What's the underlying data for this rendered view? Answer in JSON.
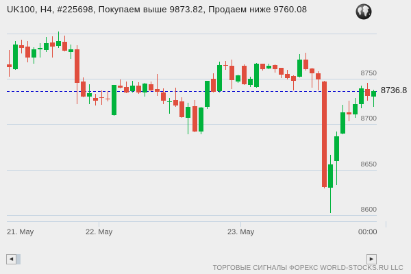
{
  "header": {
    "title": "UK100, H4, #225698, Покупаем выше 9873.82, Продаем ниже 9760.08",
    "globe_icon": "globe-icon"
  },
  "chart_data": {
    "type": "candlestick",
    "title": "UK100, H4, #225698, Покупаем выше 9873.82, Продаем ниже 9760.08",
    "symbol": "UK100",
    "timeframe": "H4",
    "signal_id": "#225698",
    "buy_above": 9873.82,
    "sell_below": 9760.08,
    "xlabel": "",
    "ylabel": "",
    "ylim": [
      8593.2,
      8800
    ],
    "grid": true,
    "legend": null,
    "gridlines": [
      8600,
      8650,
      8700,
      8750,
      8800
    ],
    "y_tick_labels": [
      {
        "value": 8600,
        "label": "8600"
      },
      {
        "value": 8650,
        "label": "8650"
      },
      {
        "value": 8700,
        "label": "8700"
      },
      {
        "value": 8750,
        "label": "8750"
      }
    ],
    "x_tick_labels": [
      "21. May",
      "22. May",
      "23. May",
      "00:00"
    ],
    "current_price": 8736.8,
    "current_price_label": "8736.8",
    "colors": {
      "up": "#00b33c",
      "down": "#e04e3e",
      "current_line": "#0000d0",
      "grid": "#c6d4e2"
    },
    "ohlc_fields": [
      "open",
      "high",
      "low",
      "close"
    ],
    "ohlc": [
      [
        8765.8,
        8781.7,
        8753.0,
        8762.8
      ],
      [
        8760.6,
        8791.5,
        8760.6,
        8787.7
      ],
      [
        8786.9,
        8793.0,
        8778.6,
        8783.9
      ],
      [
        8785.4,
        8791.5,
        8768.8,
        8773.4
      ],
      [
        8773.4,
        8784.7,
        8767.3,
        8782.4
      ],
      [
        8782.4,
        8789.2,
        8774.1,
        8783.9
      ],
      [
        8781.7,
        8796.0,
        8780.2,
        8789.2
      ],
      [
        8790.0,
        8796.7,
        8774.1,
        8785.4
      ],
      [
        8786.2,
        8802.0,
        8784.7,
        8791.5
      ],
      [
        8790.7,
        8797.5,
        8780.9,
        8780.9
      ],
      [
        8779.4,
        8787.7,
        8772.6,
        8782.4
      ],
      [
        8782.4,
        8786.9,
        8722.9,
        8745.5
      ],
      [
        8747.0,
        8751.5,
        8730.4,
        8730.4
      ],
      [
        8730.4,
        8744.0,
        8722.9,
        8734.2
      ],
      [
        8728.9,
        8733.4,
        8721.4,
        8725.9
      ],
      [
        8729.6,
        8737.2,
        8722.1,
        8728.9
      ],
      [
        8728.1,
        8736.4,
        8725.9,
        8727.4
      ],
      [
        8710.0,
        8743.2,
        8710.0,
        8743.2
      ],
      [
        8742.5,
        8749.2,
        8740.2,
        8740.2
      ],
      [
        8741.0,
        8747.0,
        8734.9,
        8734.9
      ],
      [
        8736.4,
        8747.7,
        8735.7,
        8742.5
      ],
      [
        8742.5,
        8746.2,
        8734.2,
        8734.9
      ],
      [
        8734.9,
        8745.5,
        8731.2,
        8744.7
      ],
      [
        8744.0,
        8747.0,
        8737.2,
        8737.2
      ],
      [
        8738.7,
        8755.3,
        8731.9,
        8735.7
      ],
      [
        8734.9,
        8739.4,
        8722.9,
        8725.9
      ],
      [
        8724.4,
        8728.9,
        8712.3,
        8725.1
      ],
      [
        8726.6,
        8740.2,
        8719.8,
        8720.6
      ],
      [
        8725.1,
        8729.6,
        8707.8,
        8707.8
      ],
      [
        8707.0,
        8723.6,
        8689.7,
        8719.1
      ],
      [
        8719.8,
        8726.6,
        8692.0,
        8692.0
      ],
      [
        8692.0,
        8719.1,
        8689.7,
        8718.3
      ],
      [
        8719.1,
        8747.7,
        8717.6,
        8747.7
      ],
      [
        8750.0,
        8756.0,
        8735.7,
        8735.7
      ],
      [
        8736.4,
        8768.8,
        8735.7,
        8765.1
      ],
      [
        8765.1,
        8769.6,
        8760.6,
        8764.3
      ],
      [
        8764.3,
        8771.1,
        8739.4,
        8748.5
      ],
      [
        8747.0,
        8754.5,
        8746.2,
        8753.8
      ],
      [
        8764.3,
        8765.8,
        8744.0,
        8744.0
      ],
      [
        8743.2,
        8752.3,
        8741.7,
        8750.0
      ],
      [
        8741.0,
        8767.3,
        8741.0,
        8766.6
      ],
      [
        8766.6,
        8766.6,
        8759.8,
        8760.6
      ],
      [
        8761.3,
        8766.6,
        8761.3,
        8764.3
      ],
      [
        8765.1,
        8765.8,
        8757.5,
        8760.6
      ],
      [
        8762.1,
        8762.1,
        8751.5,
        8754.5
      ],
      [
        8755.3,
        8759.8,
        8750.0,
        8750.8
      ],
      [
        8753.0,
        8753.8,
        8737.9,
        8747.7
      ],
      [
        8752.3,
        8777.1,
        8752.3,
        8771.1
      ],
      [
        8771.1,
        8778.6,
        8759.8,
        8760.6
      ],
      [
        8761.3,
        8762.1,
        8741.0,
        8756.0
      ],
      [
        8756.0,
        8758.3,
        8737.9,
        8749.2
      ],
      [
        8747.0,
        8747.7,
        8630.1,
        8630.9
      ],
      [
        8630.1,
        8666.3,
        8603.0,
        8655.8
      ],
      [
        8659.5,
        8692.0,
        8633.9,
        8686.7
      ],
      [
        8689.7,
        8721.4,
        8689.7,
        8713.1
      ],
      [
        8713.1,
        8725.9,
        8704.0,
        8710.8
      ],
      [
        8710.8,
        8728.9,
        8707.8,
        8722.1
      ],
      [
        8722.1,
        8742.5,
        8718.3,
        8739.4
      ],
      [
        8738.7,
        8745.5,
        8726.6,
        8731.2
      ],
      [
        8730.4,
        8737.9,
        8719.8,
        8736.8
      ]
    ]
  },
  "scrollbar": {
    "left_arrow": "◀",
    "right_arrow": "▶"
  },
  "footer": {
    "text": "ТОРГОВЫЕ СИГНАЛЫ ФОРЕКС WORLD-STOCKS.RU LLC"
  }
}
